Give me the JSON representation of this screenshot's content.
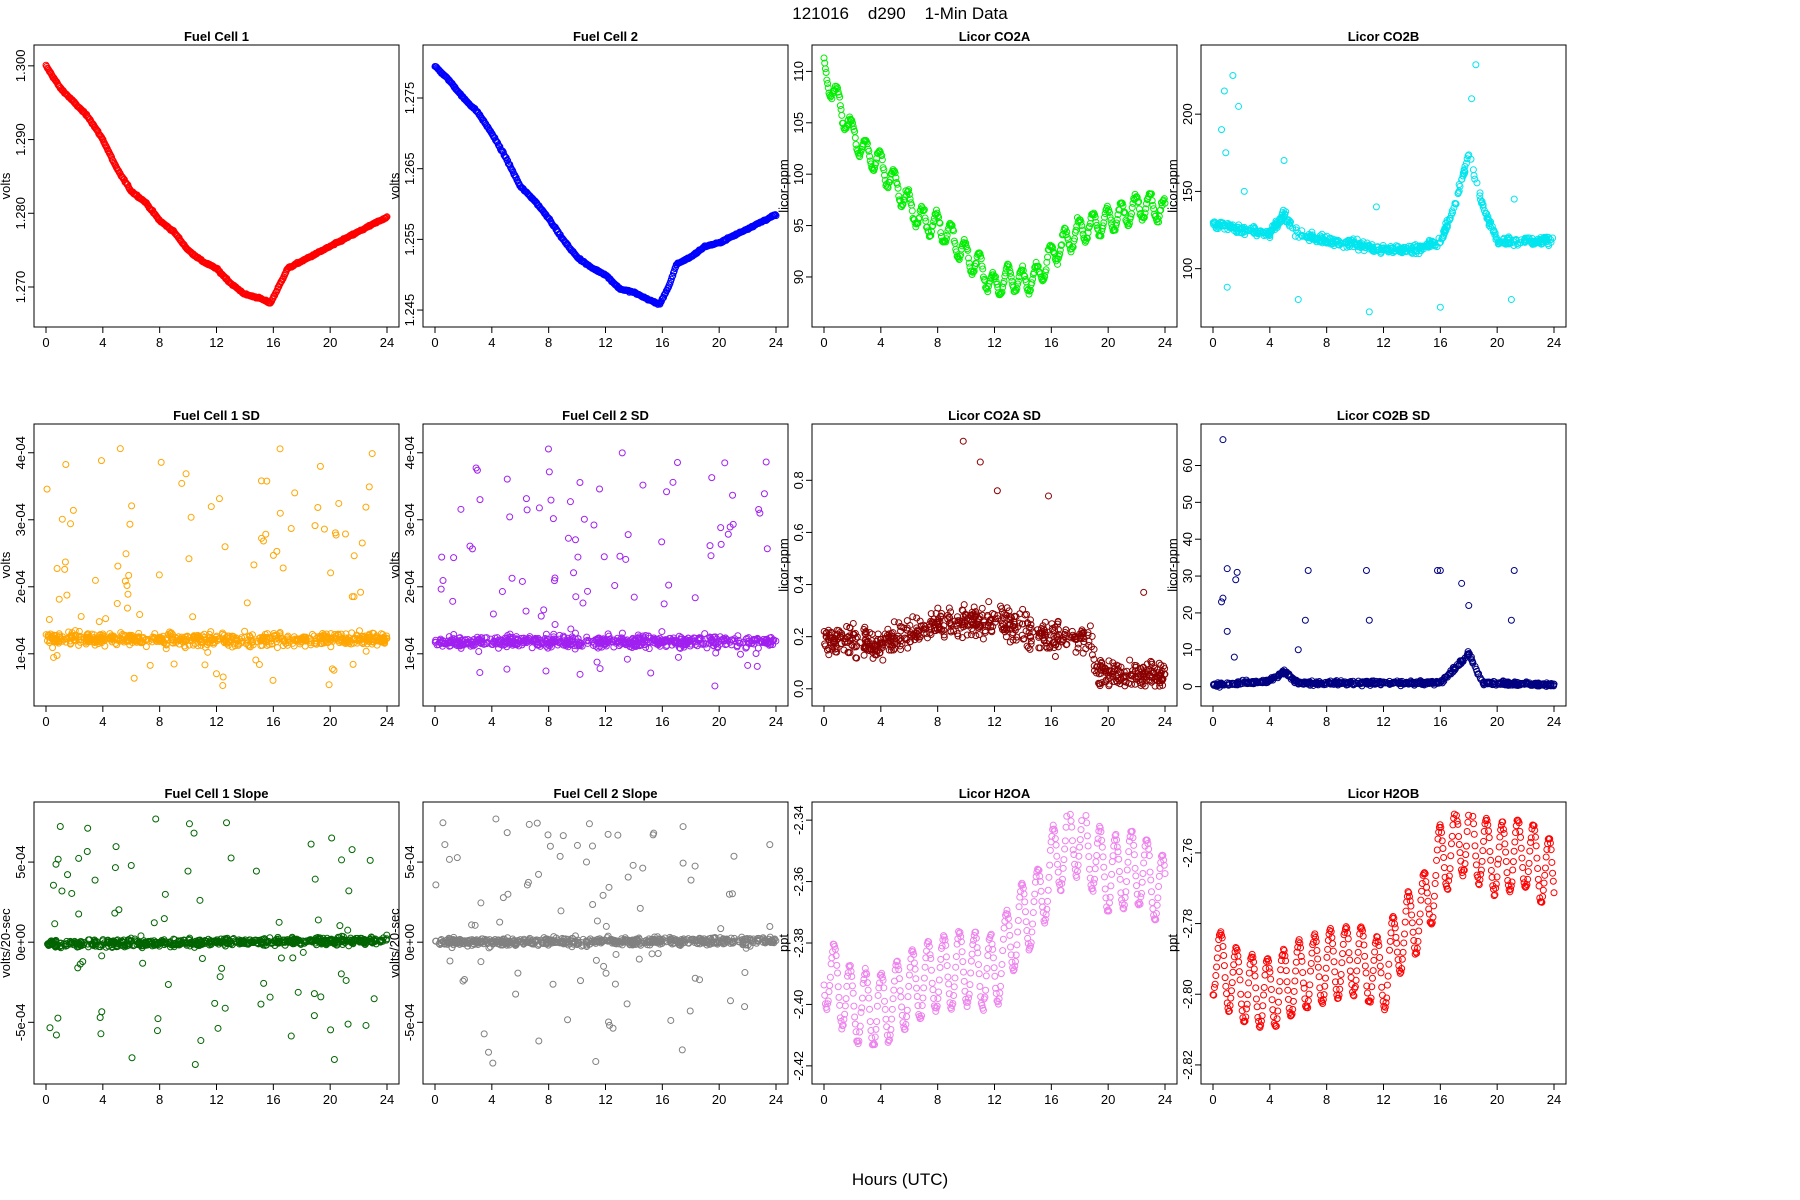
{
  "figure": {
    "title": "121016    d290    1-Min Data",
    "xlabel": "Hours (UTC)"
  },
  "chart_data": [
    {
      "type": "scatter",
      "title": "Fuel Cell 1",
      "ylabel": "volts",
      "color": "#ff0000",
      "xlim": [
        0,
        24
      ],
      "ylim": [
        1.2662,
        1.3012
      ],
      "xticks": [
        0,
        4,
        8,
        12,
        16,
        20,
        24
      ],
      "yticks": [
        1.27,
        1.28,
        1.29,
        1.3
      ],
      "ytick_labels": [
        "1.270",
        "1.280",
        "1.290",
        "1.300"
      ],
      "pattern": {
        "kind": "curve",
        "knots": [
          [
            0,
            1.3
          ],
          [
            1,
            1.297
          ],
          [
            2,
            1.295
          ],
          [
            3,
            1.293
          ],
          [
            4,
            1.29
          ],
          [
            5,
            1.286
          ],
          [
            6,
            1.283
          ],
          [
            7,
            1.2815
          ],
          [
            8,
            1.279
          ],
          [
            9,
            1.2775
          ],
          [
            10,
            1.275
          ],
          [
            11,
            1.2735
          ],
          [
            12,
            1.2725
          ],
          [
            13,
            1.2705
          ],
          [
            14,
            1.269
          ],
          [
            15,
            1.2685
          ],
          [
            15.8,
            1.2678
          ],
          [
            16.5,
            1.2705
          ],
          [
            17,
            1.2725
          ],
          [
            18,
            1.2735
          ],
          [
            19,
            1.2745
          ],
          [
            20,
            1.2755
          ],
          [
            21,
            1.2765
          ],
          [
            22,
            1.2775
          ],
          [
            23,
            1.2785
          ],
          [
            24,
            1.2795
          ]
        ],
        "noise": 0.00025
      }
    },
    {
      "type": "scatter",
      "title": "Fuel Cell 2",
      "ylabel": "volts",
      "color": "#0000ff",
      "xlim": [
        0,
        24
      ],
      "ylim": [
        1.2443,
        1.2808
      ],
      "xticks": [
        0,
        4,
        8,
        12,
        16,
        20,
        24
      ],
      "yticks": [
        1.245,
        1.255,
        1.265,
        1.275
      ],
      "ytick_labels": [
        "1.245",
        "1.255",
        "1.265",
        "1.275"
      ],
      "pattern": {
        "kind": "curve",
        "knots": [
          [
            0,
            1.2795
          ],
          [
            1,
            1.2775
          ],
          [
            2,
            1.275
          ],
          [
            3,
            1.273
          ],
          [
            4,
            1.27
          ],
          [
            5,
            1.2665
          ],
          [
            6,
            1.2625
          ],
          [
            7,
            1.2605
          ],
          [
            8,
            1.258
          ],
          [
            9,
            1.255
          ],
          [
            10,
            1.2525
          ],
          [
            11,
            1.251
          ],
          [
            12,
            1.25
          ],
          [
            13,
            1.248
          ],
          [
            14,
            1.2475
          ],
          [
            15,
            1.2465
          ],
          [
            15.8,
            1.2458
          ],
          [
            16.5,
            1.2485
          ],
          [
            17,
            1.2515
          ],
          [
            18,
            1.2525
          ],
          [
            19,
            1.254
          ],
          [
            20,
            1.2545
          ],
          [
            21,
            1.2555
          ],
          [
            22,
            1.2565
          ],
          [
            23,
            1.2575
          ],
          [
            24,
            1.2585
          ]
        ],
        "noise": 0.00025
      }
    },
    {
      "type": "scatter",
      "title": "Licor CO2A",
      "ylabel": "licor-ppm",
      "color": "#00ee00",
      "xlim": [
        0,
        24
      ],
      "ylim": [
        86.3,
        111.4
      ],
      "xticks": [
        0,
        4,
        8,
        12,
        16,
        20,
        24
      ],
      "yticks": [
        90,
        95,
        100,
        105,
        110
      ],
      "ytick_labels": [
        "90",
        "95",
        "100",
        "105",
        "110"
      ],
      "pattern": {
        "kind": "curve",
        "knots": [
          [
            0,
            110
          ],
          [
            1,
            107
          ],
          [
            2,
            104
          ],
          [
            3,
            102
          ],
          [
            4,
            101
          ],
          [
            5,
            99
          ],
          [
            6,
            97
          ],
          [
            7,
            95.5
          ],
          [
            8,
            95
          ],
          [
            9,
            94
          ],
          [
            10,
            92
          ],
          [
            11,
            91
          ],
          [
            12,
            89
          ],
          [
            13,
            90
          ],
          [
            14,
            89.5
          ],
          [
            15,
            90
          ],
          [
            16,
            92
          ],
          [
            17,
            93.5
          ],
          [
            18,
            94.5
          ],
          [
            19,
            95
          ],
          [
            20,
            95.5
          ],
          [
            21,
            96
          ],
          [
            22,
            96.8
          ],
          [
            23,
            97
          ],
          [
            24,
            96.2
          ]
        ],
        "noise": 0.6,
        "wave": {
          "amp": 1.2,
          "period": 1.0
        }
      }
    },
    {
      "type": "scatter",
      "title": "Licor CO2B",
      "ylabel": "licor-ppm",
      "color": "#00e5ee",
      "xlim": [
        0,
        24
      ],
      "ylim": [
        70,
        237
      ],
      "xticks": [
        0,
        4,
        8,
        12,
        16,
        20,
        24
      ],
      "yticks": [
        100,
        150,
        200
      ],
      "ytick_labels": [
        "100",
        "150",
        "200"
      ],
      "pattern": {
        "kind": "band",
        "base": [
          [
            0,
            129
          ],
          [
            2,
            125
          ],
          [
            4,
            123
          ],
          [
            5,
            135
          ],
          [
            6,
            122
          ],
          [
            8,
            118
          ],
          [
            10,
            116
          ],
          [
            12,
            112
          ],
          [
            14,
            112
          ],
          [
            16,
            118
          ],
          [
            17,
            140
          ],
          [
            18,
            175
          ],
          [
            19,
            140
          ],
          [
            20,
            118
          ],
          [
            22,
            118
          ],
          [
            24,
            118
          ]
        ],
        "spread": 6,
        "outliers": [
          [
            0.8,
            215
          ],
          [
            1.4,
            225
          ],
          [
            1.8,
            205
          ],
          [
            0.6,
            190
          ],
          [
            0.9,
            175
          ],
          [
            5,
            170
          ],
          [
            1,
            88
          ],
          [
            6,
            80
          ],
          [
            11,
            72
          ],
          [
            16,
            75
          ],
          [
            21,
            80
          ],
          [
            18.5,
            232
          ],
          [
            18.2,
            210
          ],
          [
            11.5,
            140
          ],
          [
            21.2,
            145
          ],
          [
            2.2,
            150
          ]
        ]
      }
    },
    {
      "type": "scatter",
      "title": "Fuel Cell 1 SD",
      "ylabel": "volts",
      "color": "#ffa500",
      "xlim": [
        0,
        24
      ],
      "ylim": [
        4e-05,
        0.000425
      ],
      "xticks": [
        0,
        4,
        8,
        12,
        16,
        20,
        24
      ],
      "yticks": [
        0.0001,
        0.0002,
        0.0003,
        0.0004
      ],
      "ytick_labels": [
        "1e-04",
        "2e-04",
        "3e-04",
        "4e-04"
      ],
      "pattern": {
        "kind": "band",
        "base": [
          [
            0,
            0.000122
          ],
          [
            24,
            0.000122
          ]
        ],
        "spread": 2e-05,
        "outlier_count": 100,
        "outlier_range": [
          5e-05,
          0.00041
        ]
      }
    },
    {
      "type": "scatter",
      "title": "Fuel Cell 2 SD",
      "ylabel": "volts",
      "color": "#a020f0",
      "xlim": [
        0,
        24
      ],
      "ylim": [
        4e-05,
        0.000425
      ],
      "xticks": [
        0,
        4,
        8,
        12,
        16,
        20,
        24
      ],
      "yticks": [
        0.0001,
        0.0002,
        0.0003,
        0.0004
      ],
      "ytick_labels": [
        "1e-04",
        "2e-04",
        "3e-04",
        "4e-04"
      ],
      "pattern": {
        "kind": "band",
        "base": [
          [
            0,
            0.000118
          ],
          [
            24,
            0.000118
          ]
        ],
        "spread": 1.8e-05,
        "outlier_count": 100,
        "outlier_range": [
          5e-05,
          0.00041
        ]
      }
    },
    {
      "type": "scatter",
      "title": "Licor CO2A SD",
      "ylabel": "licor-ppm",
      "color": "#8b0000",
      "xlim": [
        0,
        24
      ],
      "ylim": [
        -0.02,
        0.97
      ],
      "xticks": [
        0,
        4,
        8,
        12,
        16,
        20,
        24
      ],
      "yticks": [
        0,
        0.2,
        0.4,
        0.6,
        0.8
      ],
      "ytick_labels": [
        "0.0",
        "0.2",
        "0.4",
        "0.6",
        "0.8"
      ],
      "pattern": {
        "kind": "spread",
        "base": [
          [
            0,
            0.18
          ],
          [
            4,
            0.17
          ],
          [
            8,
            0.25
          ],
          [
            12,
            0.27
          ],
          [
            16,
            0.2
          ],
          [
            18.8,
            0.2
          ],
          [
            19.2,
            0.06
          ],
          [
            24,
            0.05
          ]
        ],
        "spread": 0.12,
        "outliers": [
          [
            9.8,
            0.95
          ],
          [
            11,
            0.87
          ],
          [
            12.2,
            0.76
          ],
          [
            15.8,
            0.74
          ],
          [
            22.5,
            0.37
          ]
        ]
      }
    },
    {
      "type": "scatter",
      "title": "Licor CO2B SD",
      "ylabel": "licor-ppm",
      "color": "#000080",
      "xlim": [
        0,
        24
      ],
      "ylim": [
        -2,
        68
      ],
      "xticks": [
        0,
        4,
        8,
        12,
        16,
        20,
        24
      ],
      "yticks": [
        0,
        10,
        20,
        30,
        40,
        50,
        60
      ],
      "ytick_labels": [
        "0",
        "10",
        "20",
        "30",
        "40",
        "50",
        "60"
      ],
      "pattern": {
        "kind": "band",
        "base": [
          [
            0,
            0.5
          ],
          [
            4,
            1.5
          ],
          [
            5,
            4
          ],
          [
            6,
            1
          ],
          [
            16,
            1
          ],
          [
            17,
            5
          ],
          [
            18,
            9
          ],
          [
            19,
            1
          ],
          [
            24,
            0.5
          ]
        ],
        "spread": 1.2,
        "outliers": [
          [
            0.7,
            67
          ],
          [
            0.7,
            24
          ],
          [
            0.6,
            23
          ],
          [
            1,
            32
          ],
          [
            1.7,
            31
          ],
          [
            1.6,
            29
          ],
          [
            6.7,
            31.5
          ],
          [
            10.8,
            31.5
          ],
          [
            15.8,
            31.5
          ],
          [
            16,
            31.5
          ],
          [
            21.2,
            31.5
          ],
          [
            17.5,
            28
          ],
          [
            18,
            22
          ],
          [
            1,
            15
          ],
          [
            1.5,
            8
          ],
          [
            11,
            18
          ],
          [
            21,
            18
          ],
          [
            6.5,
            18
          ],
          [
            6,
            10
          ]
        ]
      }
    },
    {
      "type": "scatter",
      "title": "Fuel Cell 1 Slope",
      "ylabel": "volts/20-sec",
      "color": "#006400",
      "xlim": [
        0,
        24
      ],
      "ylim": [
        -0.00081,
        0.0008
      ],
      "xticks": [
        0,
        4,
        8,
        12,
        16,
        20,
        24
      ],
      "yticks": [
        -0.0005,
        0,
        0.0005
      ],
      "ytick_labels": [
        "-5e-04",
        "0e+00",
        "5e-04"
      ],
      "pattern": {
        "kind": "band",
        "base": [
          [
            0,
            -1e-05
          ],
          [
            24,
            1e-05
          ]
        ],
        "spread": 5e-05,
        "outlier_count": 90,
        "outlier_range": [
          -0.00077,
          0.00077
        ]
      }
    },
    {
      "type": "scatter",
      "title": "Fuel Cell 2 Slope",
      "ylabel": "volts/20-sec",
      "color": "#808080",
      "xlim": [
        0,
        24
      ],
      "ylim": [
        -0.00081,
        0.0008
      ],
      "xticks": [
        0,
        4,
        8,
        12,
        16,
        20,
        24
      ],
      "yticks": [
        -0.0005,
        0,
        0.0005
      ],
      "ytick_labels": [
        "-5e-04",
        "0e+00",
        "5e-04"
      ],
      "pattern": {
        "kind": "band",
        "base": [
          [
            0,
            0
          ],
          [
            24,
            1e-05
          ]
        ],
        "spread": 5e-05,
        "outlier_count": 90,
        "outlier_range": [
          -0.00077,
          0.00077
        ]
      }
    },
    {
      "type": "scatter",
      "title": "Licor H2OA",
      "ylabel": "ppt",
      "color": "#ee82ee",
      "xlim": [
        0,
        24
      ],
      "ylim": [
        -2.422,
        -2.338
      ],
      "xticks": [
        0,
        4,
        8,
        12,
        16,
        20,
        24
      ],
      "yticks": [
        -2.42,
        -2.4,
        -2.38,
        -2.36,
        -2.34
      ],
      "ytick_labels": [
        "-2.42",
        "-2.40",
        "-2.38",
        "-2.36",
        "-2.34"
      ],
      "pattern": {
        "kind": "curve",
        "knots": [
          [
            0,
            -2.388
          ],
          [
            2,
            -2.4
          ],
          [
            4,
            -2.402
          ],
          [
            6,
            -2.395
          ],
          [
            8,
            -2.39
          ],
          [
            10,
            -2.388
          ],
          [
            12,
            -2.39
          ],
          [
            13,
            -2.38
          ],
          [
            14,
            -2.372
          ],
          [
            15,
            -2.368
          ],
          [
            16,
            -2.355
          ],
          [
            17,
            -2.348
          ],
          [
            18,
            -2.345
          ],
          [
            19,
            -2.352
          ],
          [
            20,
            -2.358
          ],
          [
            22,
            -2.355
          ],
          [
            24,
            -2.364
          ]
        ],
        "noise": 0.002,
        "wave": {
          "amp": 0.012,
          "period": 1.1
        }
      }
    },
    {
      "type": "scatter",
      "title": "Licor H2OB",
      "ylabel": "ppt",
      "color": "#ff0000",
      "xlim": [
        0,
        24
      ],
      "ylim": [
        -2.822,
        -2.749
      ],
      "xticks": [
        0,
        4,
        8,
        12,
        16,
        20,
        24
      ],
      "yticks": [
        -2.82,
        -2.8,
        -2.78,
        -2.76
      ],
      "ytick_labels": [
        "-2.82",
        "-2.80",
        "-2.78",
        "-2.76"
      ],
      "pattern": {
        "kind": "curve",
        "knots": [
          [
            0,
            -2.79
          ],
          [
            2,
            -2.798
          ],
          [
            4,
            -2.8
          ],
          [
            6,
            -2.795
          ],
          [
            8,
            -2.792
          ],
          [
            10,
            -2.79
          ],
          [
            12,
            -2.795
          ],
          [
            13,
            -2.785
          ],
          [
            14,
            -2.78
          ],
          [
            15,
            -2.775
          ],
          [
            16,
            -2.762
          ],
          [
            17,
            -2.758
          ],
          [
            18,
            -2.755
          ],
          [
            19,
            -2.76
          ],
          [
            20,
            -2.762
          ],
          [
            22,
            -2.76
          ],
          [
            24,
            -2.767
          ]
        ],
        "noise": 0.0015,
        "wave": {
          "amp": 0.01,
          "period": 1.1
        }
      }
    }
  ]
}
